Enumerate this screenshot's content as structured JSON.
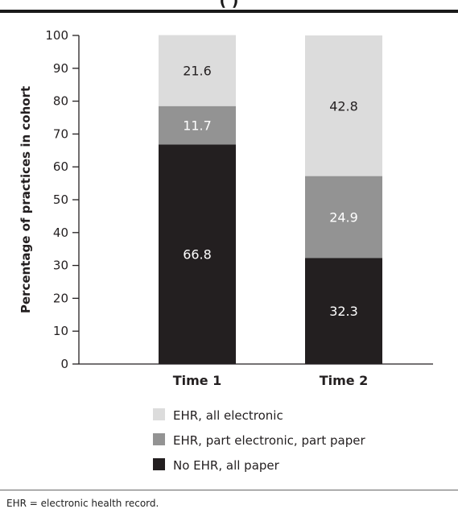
{
  "header": {
    "title_fragment": "(                )"
  },
  "chart_data": {
    "type": "bar",
    "stacked": true,
    "categories": [
      "Time 1",
      "Time 2"
    ],
    "series": [
      {
        "name": "No EHR, all paper",
        "values": [
          66.8,
          32.3
        ],
        "color": "#231f20",
        "label_color": "#ffffff"
      },
      {
        "name": "EHR, part electronic, part paper",
        "values": [
          11.7,
          24.9
        ],
        "color": "#939393",
        "label_color": "#ffffff"
      },
      {
        "name": "EHR, all electronic",
        "values": [
          21.6,
          42.8
        ],
        "color": "#dcdcdc",
        "label_color": "#231f20"
      }
    ],
    "ylabel": "Percentage of practices in cohort",
    "ylim": [
      0,
      100
    ],
    "yticks": [
      0,
      10,
      20,
      30,
      40,
      50,
      60,
      70,
      80,
      90,
      100
    ],
    "legend_order": [
      "EHR, all electronic",
      "EHR, part electronic, part paper",
      "No EHR, all paper"
    ],
    "legend_position": "bottom"
  },
  "footnote": "EHR = electronic health record."
}
